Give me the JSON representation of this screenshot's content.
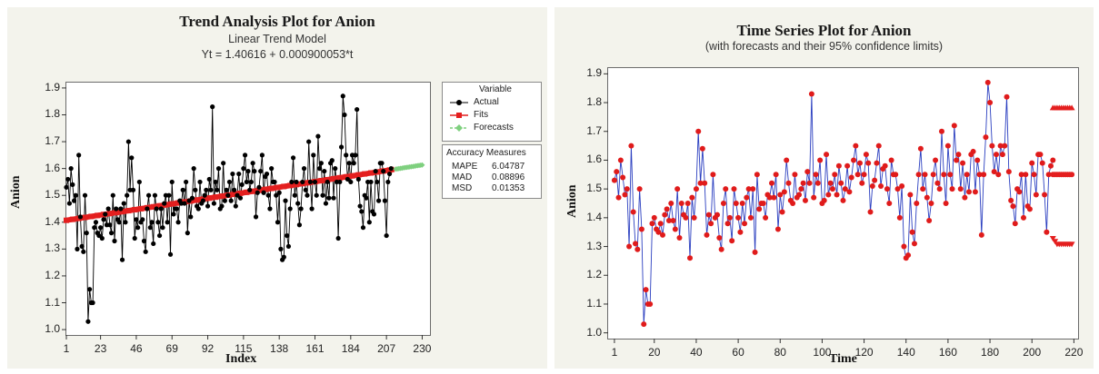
{
  "colors": {
    "actual": "#000000",
    "fits": "#e41f1f",
    "forecasts": "#7fd07f",
    "series_line": "#2b3fc0",
    "series_point": "#e01b1b",
    "bound": "#e41f1f",
    "panel": "#f3f3ec"
  },
  "left_panel": {
    "title": "Trend Analysis Plot for Anion",
    "subtitle": "Linear Trend Model",
    "equation": "Yt = 1.40616 + 0.000900053*t",
    "legend": {
      "header": "Variable",
      "items": [
        "Actual",
        "Fits",
        "Forecasts"
      ]
    },
    "accuracy": {
      "header": "Accuracy Measures",
      "rows": [
        [
          "MAPE",
          "6.04787"
        ],
        [
          "MAD",
          "0.08896"
        ],
        [
          "MSD",
          "0.01353"
        ]
      ]
    }
  },
  "right_panel": {
    "title": "Time Series Plot for Anion",
    "subtitle": "(with forecasts and their 95% confidence limits)"
  },
  "chart_data": [
    {
      "type": "line",
      "title": "Trend Analysis Plot for Anion",
      "subtitle": "Linear Trend Model",
      "xlabel": "Index",
      "ylabel": "Anion",
      "xlim": [
        1,
        235
      ],
      "ylim": [
        0.98,
        1.92
      ],
      "xticks": [
        "1",
        "23",
        "46",
        "69",
        "92",
        "115",
        "138",
        "161",
        "184",
        "207",
        "230"
      ],
      "yticks": [
        "1.0",
        "1.1",
        "1.2",
        "1.3",
        "1.4",
        "1.5",
        "1.6",
        "1.7",
        "1.8",
        "1.9"
      ],
      "grid": false,
      "legend": "right",
      "series": [
        {
          "name": "Actual",
          "values": [
            1.53,
            1.56,
            1.47,
            1.6,
            1.54,
            1.48,
            1.5,
            1.3,
            1.65,
            1.42,
            1.31,
            1.29,
            1.5,
            1.36,
            1.03,
            1.15,
            1.1,
            1.1,
            1.38,
            1.4,
            1.36,
            1.35,
            1.38,
            1.34,
            1.41,
            1.43,
            1.39,
            1.45,
            1.39,
            1.36,
            1.5,
            1.33,
            1.45,
            1.41,
            1.4,
            1.45,
            1.26,
            1.47,
            1.4,
            1.5,
            1.7,
            1.52,
            1.64,
            1.52,
            1.34,
            1.41,
            1.38,
            1.55,
            1.4,
            1.41,
            1.33,
            1.29,
            1.45,
            1.5,
            1.38,
            1.4,
            1.32,
            1.5,
            1.45,
            1.4,
            1.35,
            1.45,
            1.38,
            1.47,
            1.5,
            1.4,
            1.5,
            1.28,
            1.55,
            1.43,
            1.45,
            1.45,
            1.4,
            1.48,
            1.47,
            1.52,
            1.47,
            1.55,
            1.36,
            1.48,
            1.42,
            1.49,
            1.6,
            1.52,
            1.46,
            1.45,
            1.55,
            1.47,
            1.48,
            1.5,
            1.52,
            1.46,
            1.56,
            1.52,
            1.83,
            1.47,
            1.55,
            1.52,
            1.6,
            1.45,
            1.46,
            1.62,
            1.48,
            1.52,
            1.5,
            1.55,
            1.48,
            1.58,
            1.52,
            1.46,
            1.5,
            1.58,
            1.49,
            1.54,
            1.6,
            1.65,
            1.55,
            1.59,
            1.52,
            1.55,
            1.62,
            1.59,
            1.42,
            1.51,
            1.53,
            1.59,
            1.65,
            1.51,
            1.57,
            1.58,
            1.5,
            1.45,
            1.6,
            1.55,
            1.55,
            1.5,
            1.4,
            1.51,
            1.3,
            1.26,
            1.27,
            1.48,
            1.35,
            1.31,
            1.45,
            1.55,
            1.64,
            1.5,
            1.55,
            1.47,
            1.39,
            1.45,
            1.55,
            1.6,
            1.52,
            1.5,
            1.7,
            1.55,
            1.45,
            1.65,
            1.55,
            1.5,
            1.72,
            1.6,
            1.62,
            1.5,
            1.59,
            1.47,
            1.55,
            1.49,
            1.62,
            1.63,
            1.49,
            1.6,
            1.55,
            1.34,
            1.55,
            1.68,
            1.87,
            1.8,
            1.65,
            1.56,
            1.62,
            1.55,
            1.65,
            1.62,
            1.65,
            1.82,
            1.56,
            1.46,
            1.44,
            1.38,
            1.5,
            1.49,
            1.55,
            1.4,
            1.55,
            1.44,
            1.43,
            1.59,
            1.55,
            1.48,
            1.62,
            1.62,
            1.59,
            1.48,
            1.35,
            1.55,
            1.58,
            1.6
          ]
        },
        {
          "name": "Fits",
          "intercept": 1.40616,
          "slope": 0.000900053,
          "x_range": [
            1,
            212
          ]
        },
        {
          "name": "Forecasts",
          "intercept": 1.40616,
          "slope": 0.000900053,
          "x_range": [
            213,
            230
          ]
        }
      ]
    },
    {
      "type": "line",
      "title": "Time Series Plot for Anion",
      "subtitle": "(with forecasts and their 95% confidence limits)",
      "xlabel": "Time",
      "ylabel": "Anion",
      "xlim": [
        -2,
        222
      ],
      "ylim": [
        0.98,
        1.92
      ],
      "xticks": [
        "1",
        "20",
        "40",
        "60",
        "80",
        "100",
        "120",
        "140",
        "160",
        "180",
        "200",
        "220"
      ],
      "yticks": [
        "1.0",
        "1.1",
        "1.2",
        "1.3",
        "1.4",
        "1.5",
        "1.6",
        "1.7",
        "1.8",
        "1.9"
      ],
      "grid": false,
      "series": [
        {
          "name": "Anion",
          "source": "same values as Actual series"
        },
        {
          "name": "Forecast",
          "x_range": [
            210,
            219
          ],
          "values": [
            1.55,
            1.55,
            1.55,
            1.55,
            1.55,
            1.55,
            1.55,
            1.55,
            1.55,
            1.55
          ]
        },
        {
          "name": "Upper 95%",
          "x_range": [
            210,
            219
          ],
          "values": [
            1.78,
            1.78,
            1.78,
            1.78,
            1.78,
            1.78,
            1.78,
            1.78,
            1.78,
            1.78
          ]
        },
        {
          "name": "Lower 95%",
          "x_range": [
            210,
            219
          ],
          "values": [
            1.33,
            1.32,
            1.31,
            1.31,
            1.31,
            1.31,
            1.31,
            1.31,
            1.31,
            1.31
          ]
        }
      ]
    }
  ]
}
